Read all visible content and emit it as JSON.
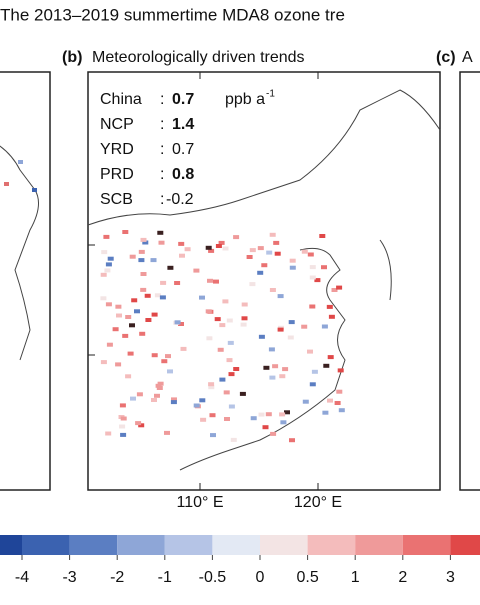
{
  "title": "The 2013–2019 summertime MDA8 ozone tre",
  "panels": [
    {
      "label": "(b)",
      "title": "Meteorologically driven trends",
      "separator": ":",
      "unit": "ppb a",
      "unit_exponent": "-1",
      "stats": [
        {
          "region": "China",
          "value": 0.7,
          "bold": true
        },
        {
          "region": "NCP",
          "value": 1.4,
          "bold": true
        },
        {
          "region": "YRD",
          "value": 0.7,
          "bold": false
        },
        {
          "region": "PRD",
          "value": 0.8,
          "bold": true
        },
        {
          "region": "SCB",
          "value": -0.2,
          "bold": false
        }
      ],
      "xticks": [
        "110° E",
        "120° E"
      ]
    },
    {
      "label": "(c)",
      "title": "A"
    }
  ],
  "colorbar": {
    "ticks": [
      -4,
      -3,
      -2,
      -1,
      -0.5,
      0,
      0.5,
      1,
      2,
      3
    ],
    "colors": [
      "#1f4599",
      "#3b62b0",
      "#5b7ec2",
      "#8ea6d7",
      "#b5c4e6",
      "#e3e9f4",
      "#f3e4e4",
      "#f4bcbc",
      "#ef9a9a",
      "#ea7272",
      "#e04848"
    ]
  }
}
